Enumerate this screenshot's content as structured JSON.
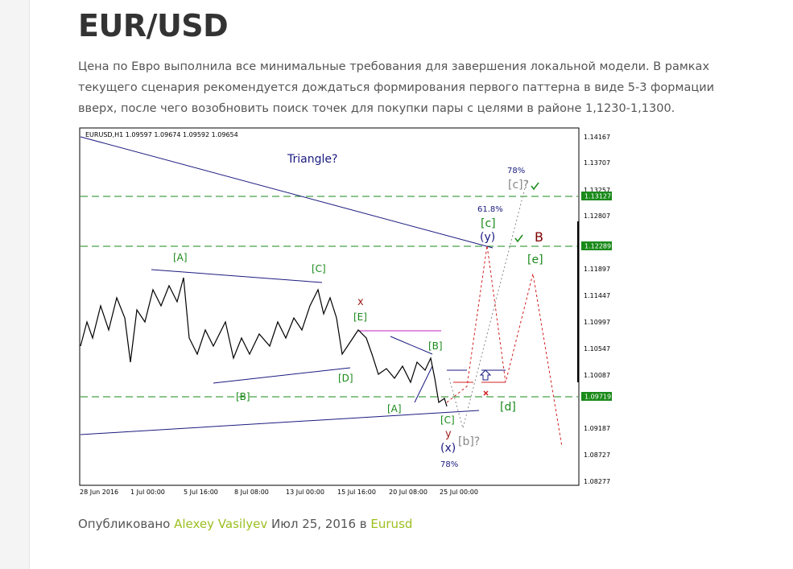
{
  "header": {
    "title": "EUR/USD"
  },
  "body": {
    "paragraph": "Цена по Евро выполнила все минимальные требования для завершения локальной модели. В рамках текущего сценария рекомендуется дождаться формирования первого паттерна в виде 5-3 формации вверх, после чего возобновить поиск точек для покупки пары с целями в районе  1,1230-1,1300."
  },
  "figure": {
    "symbol_header": "EURUSD,H1  1.09597 1.09674 1.09592 1.09654",
    "y_labels": [
      "1.14167",
      "1.13707",
      "1.13257",
      "1.12807",
      "1.11897",
      "1.11447",
      "1.10997",
      "1.10547",
      "1.10087",
      "1.09187",
      "1.08727",
      "1.08277"
    ],
    "price_tags": [
      "1.13127",
      "1.12289",
      "1.09719"
    ],
    "x_labels": [
      "28 Jun 2016",
      "1 Jul 00:00",
      "5 Jul 16:00",
      "8 Jul 08:00",
      "13 Jul 00:00",
      "15 Jul 16:00",
      "20 Jul 08:00",
      "25 Jul 00:00"
    ],
    "annotations": [
      "Triangle?",
      "[A]",
      "[C]",
      "[B]",
      "[D]",
      "x",
      "[E]",
      "[B]",
      "[A]",
      "[C]",
      "y",
      "(x)",
      "78%",
      "[b]?",
      "[d]",
      "[c]",
      "(y)",
      "61.8%",
      "78%",
      "[c]?",
      "B",
      "[e]"
    ]
  },
  "footer": {
    "prefix": "Опубликовано",
    "author": "Alexey Vasilyev",
    "date": "Июл 25, 2016 в",
    "category": "Eurusd"
  }
}
